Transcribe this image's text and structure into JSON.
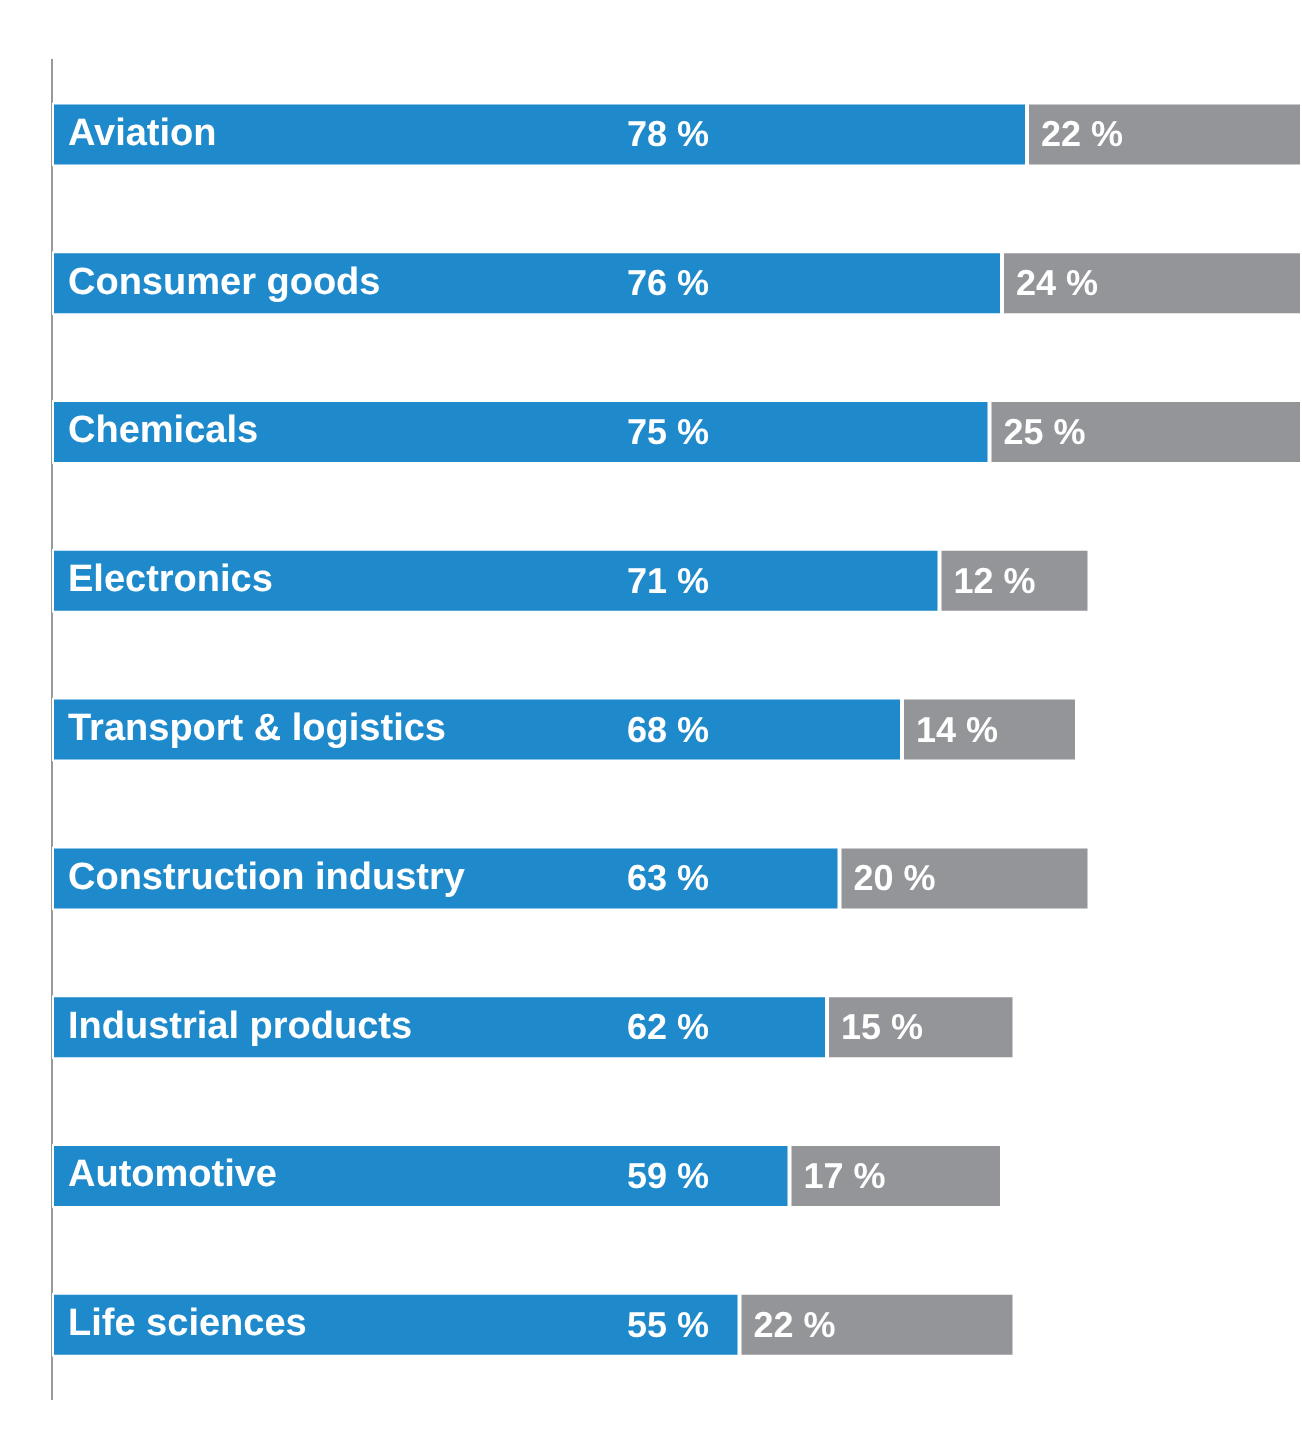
{
  "chart_data": {
    "type": "bar",
    "orientation": "horizontal",
    "stacked": true,
    "categories": [
      "Aviation",
      "Consumer goods",
      "Chemicals",
      "Electronics",
      "Transport & logistics",
      "Construction industry",
      "Industrial products",
      "Automotive",
      "Life sciences"
    ],
    "series": [
      {
        "color": "#1f8acb",
        "values": [
          78,
          76,
          75,
          71,
          68,
          63,
          62,
          59,
          55
        ],
        "value_labels": [
          "78 %",
          "76 %",
          "75 %",
          "71 %",
          "68 %",
          "63 %",
          "62 %",
          "59 %",
          "55 %"
        ]
      },
      {
        "color": "#939598",
        "values": [
          22,
          24,
          25,
          12,
          14,
          20,
          15,
          17,
          22
        ],
        "value_labels": [
          "22 %",
          "24 %",
          "25 %",
          "12 %",
          "14 %",
          "20 %",
          "15 %",
          "17 %",
          "22 %"
        ]
      }
    ],
    "legend": false
  }
}
